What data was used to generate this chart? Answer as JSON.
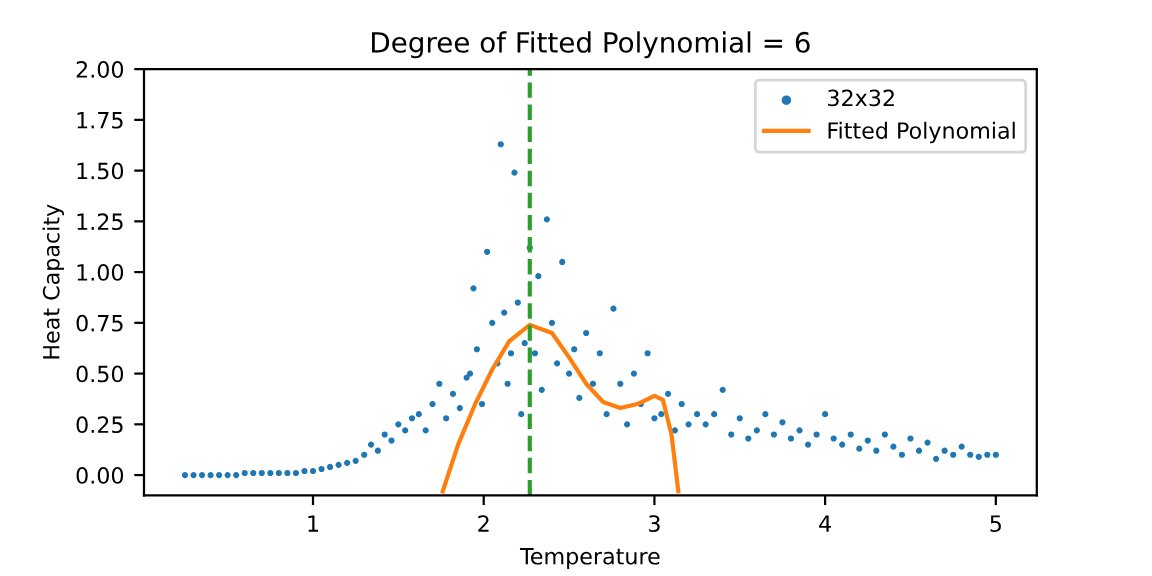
{
  "chart_data": {
    "type": "scatter",
    "title": "Degree of Fitted Polynomial = 6",
    "xlabel": "Temperature",
    "ylabel": "Heat Capacity",
    "xlim": [
      0.01,
      5.24
    ],
    "ylim": [
      -0.1,
      2.0
    ],
    "xticks": [
      1,
      2,
      3,
      4,
      5
    ],
    "yticks": [
      {
        "value": 0,
        "label": "0.00"
      },
      {
        "value": 0.25,
        "label": "0.25"
      },
      {
        "value": 0.5,
        "label": "0.50"
      },
      {
        "value": 0.75,
        "label": "0.75"
      },
      {
        "value": 1.0,
        "label": "1.00"
      },
      {
        "value": 1.25,
        "label": "1.25"
      },
      {
        "value": 1.5,
        "label": "1.50"
      },
      {
        "value": 1.75,
        "label": "1.75"
      },
      {
        "value": 2.0,
        "label": "2.00"
      }
    ],
    "legend": "top right",
    "grid": false,
    "ref_lines": [
      {
        "axis": "x",
        "value": 2.27,
        "color": "#2ca02c",
        "line_style": "dashed"
      }
    ],
    "series": [
      {
        "name": "32x32",
        "color": "#1f77b4",
        "marker": "circle",
        "x": [
          0.25,
          0.3,
          0.35,
          0.4,
          0.45,
          0.5,
          0.55,
          0.6,
          0.65,
          0.7,
          0.75,
          0.8,
          0.85,
          0.9,
          0.95,
          1.0,
          1.05,
          1.1,
          1.15,
          1.2,
          1.25,
          1.3,
          1.34,
          1.38,
          1.42,
          1.46,
          1.5,
          1.54,
          1.58,
          1.62,
          1.66,
          1.7,
          1.74,
          1.78,
          1.82,
          1.86,
          1.9,
          1.92,
          1.94,
          1.96,
          1.99,
          2.02,
          2.05,
          2.08,
          2.1,
          2.12,
          2.14,
          2.16,
          2.18,
          2.2,
          2.22,
          2.24,
          2.27,
          2.3,
          2.32,
          2.34,
          2.37,
          2.4,
          2.43,
          2.46,
          2.5,
          2.53,
          2.56,
          2.6,
          2.64,
          2.68,
          2.72,
          2.76,
          2.8,
          2.84,
          2.88,
          2.92,
          2.96,
          3.0,
          3.04,
          3.08,
          3.12,
          3.16,
          3.2,
          3.25,
          3.3,
          3.35,
          3.4,
          3.45,
          3.5,
          3.55,
          3.6,
          3.65,
          3.7,
          3.75,
          3.8,
          3.85,
          3.9,
          3.95,
          4.0,
          4.05,
          4.1,
          4.15,
          4.2,
          4.25,
          4.3,
          4.35,
          4.4,
          4.45,
          4.5,
          4.55,
          4.6,
          4.65,
          4.7,
          4.75,
          4.8,
          4.85,
          4.9,
          4.95,
          5.0
        ],
        "values": [
          0.0,
          0.0,
          0.0,
          0.0,
          0.0,
          0.0,
          0.0,
          0.01,
          0.01,
          0.01,
          0.01,
          0.01,
          0.01,
          0.01,
          0.02,
          0.02,
          0.03,
          0.04,
          0.05,
          0.06,
          0.07,
          0.1,
          0.15,
          0.12,
          0.2,
          0.17,
          0.25,
          0.22,
          0.28,
          0.3,
          0.22,
          0.35,
          0.45,
          0.28,
          0.4,
          0.33,
          0.48,
          0.5,
          0.92,
          0.62,
          0.35,
          1.1,
          0.75,
          0.55,
          1.63,
          0.8,
          0.45,
          0.6,
          1.49,
          0.85,
          0.3,
          0.65,
          1.12,
          0.6,
          0.98,
          0.42,
          1.26,
          0.75,
          0.55,
          1.05,
          0.5,
          0.62,
          0.38,
          0.7,
          0.45,
          0.6,
          0.3,
          0.82,
          0.45,
          0.25,
          0.5,
          0.35,
          0.6,
          0.28,
          0.3,
          0.4,
          0.22,
          0.35,
          0.25,
          0.3,
          0.25,
          0.3,
          0.42,
          0.2,
          0.28,
          0.18,
          0.22,
          0.3,
          0.2,
          0.26,
          0.18,
          0.22,
          0.15,
          0.2,
          0.3,
          0.18,
          0.15,
          0.2,
          0.13,
          0.17,
          0.12,
          0.2,
          0.14,
          0.1,
          0.18,
          0.12,
          0.16,
          0.08,
          0.12,
          0.1,
          0.14,
          0.1,
          0.09,
          0.1,
          0.1
        ]
      },
      {
        "name": "Fitted Polynomial",
        "color": "#ff7f0e",
        "type": "line",
        "marker": "none",
        "x": [
          1.76,
          1.85,
          1.95,
          2.05,
          2.15,
          2.27,
          2.4,
          2.5,
          2.6,
          2.7,
          2.8,
          2.9,
          3.0,
          3.05,
          3.1,
          3.14
        ],
        "values": [
          -0.08,
          0.15,
          0.35,
          0.52,
          0.66,
          0.74,
          0.7,
          0.58,
          0.45,
          0.36,
          0.33,
          0.35,
          0.39,
          0.37,
          0.2,
          -0.08
        ]
      }
    ]
  }
}
